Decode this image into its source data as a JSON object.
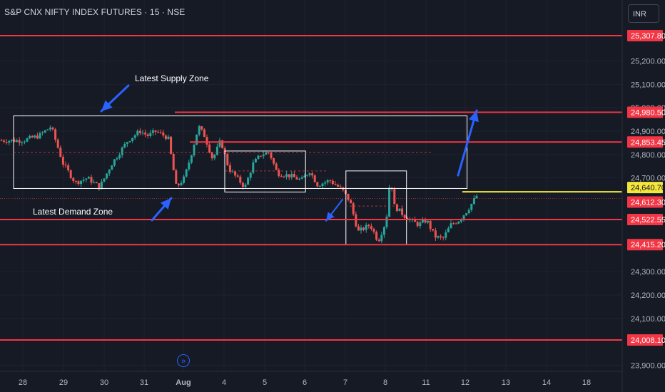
{
  "header": {
    "title": "S&P CNX NIFTY INDEX FUTURES · 15 · NSE",
    "currency": "INR"
  },
  "colors": {
    "background": "#161a25",
    "grid": "#1f2330",
    "level_line": "#f23645",
    "current_price_line": "#f5e63b",
    "up_candle": "#26a69a",
    "down_candle": "#ef5350",
    "zone_box": "#ffffff",
    "arrow": "#2962ff",
    "axis_text": "#b2b5be"
  },
  "chart_data": {
    "type": "candlestick",
    "x_tick_labels": [
      "28",
      "29",
      "30",
      "31",
      "Aug",
      "4",
      "5",
      "6",
      "7",
      "8",
      "11",
      "12",
      "13",
      "14",
      "18"
    ],
    "y_tick_labels": [
      "25,200.00",
      "25,100.00",
      "25,000.00",
      "24,900.00",
      "24,800.00",
      "24,700.00",
      "24,300.00",
      "24,200.00",
      "24,100.00",
      "23,900.00"
    ],
    "ylim": [
      23870,
      25330
    ],
    "price_labels": [
      {
        "text": "25,307.80",
        "value": 25307.8,
        "kind": "level"
      },
      {
        "text": "24,980.50",
        "value": 24980.5,
        "kind": "level"
      },
      {
        "text": "24,853.45",
        "value": 24853.45,
        "kind": "level"
      },
      {
        "text": "24,640.70",
        "value": 24640.7,
        "kind": "current"
      },
      {
        "text": "24,612.30",
        "value": 24612.3,
        "kind": "level"
      },
      {
        "text": "24,522.55",
        "value": 24522.55,
        "kind": "level"
      },
      {
        "text": "24,415.20",
        "value": 24415.2,
        "kind": "level"
      },
      {
        "text": "24,008.10",
        "value": 24008.1,
        "kind": "level"
      }
    ],
    "annotations": [
      {
        "text": "Latest Supply Zone"
      },
      {
        "text": "Latest Demand Zone"
      }
    ],
    "zone_boxes": [
      {
        "from_session": 0,
        "to_session": 11.0,
        "top": 24965,
        "bottom": 24655
      },
      {
        "from_session": 5.0,
        "to_session": 7.0,
        "top": 24815,
        "bottom": 24640
      },
      {
        "from_session": 8.0,
        "to_session": 9.5,
        "top": 24730,
        "bottom": 24415
      }
    ],
    "price_path": [
      [
        0,
        24860
      ],
      [
        0.4,
        24880
      ],
      [
        0.7,
        24920
      ],
      [
        1.0,
        24760
      ],
      [
        1.3,
        24680
      ],
      [
        1.6,
        24700
      ],
      [
        1.9,
        24660
      ],
      [
        2.2,
        24760
      ],
      [
        2.6,
        24860
      ],
      [
        2.9,
        24900
      ],
      [
        3.1,
        24880
      ],
      [
        3.3,
        24900
      ],
      [
        3.6,
        24870
      ],
      [
        3.8,
        24660
      ],
      [
        4.0,
        24700
      ],
      [
        4.2,
        24820
      ],
      [
        4.35,
        24920
      ],
      [
        4.5,
        24880
      ],
      [
        4.7,
        24780
      ],
      [
        4.9,
        24860
      ],
      [
        5.1,
        24740
      ],
      [
        5.3,
        24700
      ],
      [
        5.5,
        24660
      ],
      [
        5.7,
        24760
      ],
      [
        5.9,
        24800
      ],
      [
        6.1,
        24810
      ],
      [
        6.3,
        24720
      ],
      [
        6.6,
        24710
      ],
      [
        6.9,
        24690
      ],
      [
        7.1,
        24730
      ],
      [
        7.3,
        24670
      ],
      [
        7.6,
        24690
      ],
      [
        7.9,
        24650
      ],
      [
        8.1,
        24600
      ],
      [
        8.3,
        24470
      ],
      [
        8.6,
        24500
      ],
      [
        8.8,
        24430
      ],
      [
        9.0,
        24520
      ],
      [
        9.1,
        24710
      ],
      [
        9.2,
        24580
      ],
      [
        9.5,
        24530
      ],
      [
        9.8,
        24500
      ],
      [
        10.0,
        24520
      ],
      [
        10.2,
        24450
      ],
      [
        10.4,
        24440
      ],
      [
        10.6,
        24500
      ],
      [
        10.8,
        24520
      ],
      [
        11.0,
        24560
      ],
      [
        11.15,
        24600
      ],
      [
        11.3,
        24640
      ]
    ],
    "grid": true
  }
}
